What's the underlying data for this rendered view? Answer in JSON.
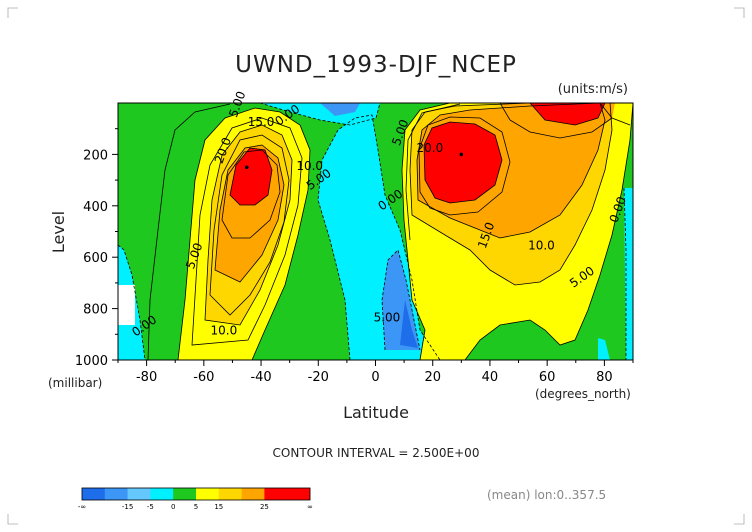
{
  "chart_data": {
    "type": "heatmap",
    "title": "UWND_1993-DJF_NCEP",
    "units": "(units:m/s)",
    "xlabel": "Latitude",
    "ylabel": "Level",
    "xunit": "(degrees_north)",
    "yunit": "(millibar)",
    "xlim": [
      -90,
      90
    ],
    "ylim": [
      1000,
      0
    ],
    "xticks": [
      -80,
      -60,
      -40,
      -20,
      0,
      20,
      40,
      60,
      80
    ],
    "yticks": [
      200,
      400,
      600,
      800,
      1000
    ],
    "contour_interval_text": "CONTOUR INTERVAL = 2.500E+00",
    "footer_text": "(mean) lon:0..357.5",
    "colorbar": {
      "labels": [
        "-∞",
        "-15",
        "-5",
        "0",
        "5",
        "15",
        "25",
        "∞"
      ],
      "colors": [
        "#1e6eeb",
        "#3c96f5",
        "#64c8ff",
        "#00f0ff",
        "#1ec81e",
        "#ffff00",
        "#ffd700",
        "#ffa500",
        "#ff0000",
        "#ff0000"
      ]
    },
    "jets": [
      {
        "lat": -45,
        "level": 250,
        "max_label": "20.0"
      },
      {
        "lat": 30,
        "level": 200,
        "max_label": "20.0"
      }
    ],
    "contour_labels": [
      {
        "text": "5.00",
        "lat": -47,
        "level": 10
      },
      {
        "text": "15.0",
        "lat": -40,
        "level": 90
      },
      {
        "text": "0.00",
        "lat": -30,
        "level": 60
      },
      {
        "text": "20.0",
        "lat": -52,
        "level": 190
      },
      {
        "text": "10.0",
        "lat": -23,
        "level": 260
      },
      {
        "text": "5.00",
        "lat": -19,
        "level": 310
      },
      {
        "text": "5.00",
        "lat": -62,
        "level": 600
      },
      {
        "text": "10.0",
        "lat": -53,
        "level": 900
      },
      {
        "text": "0.00",
        "lat": -80,
        "level": 880
      },
      {
        "text": "5.00",
        "lat": 10,
        "level": 120
      },
      {
        "text": "20.0",
        "lat": 19,
        "level": 190
      },
      {
        "text": "0.00",
        "lat": 6,
        "level": 390
      },
      {
        "text": "15.0",
        "lat": 40,
        "level": 520
      },
      {
        "text": "10.0",
        "lat": 58,
        "level": 570
      },
      {
        "text": "5.00",
        "lat": 73,
        "level": 690
      },
      {
        "text": "0.00",
        "lat": 86,
        "level": 420
      },
      {
        "text": "5.00",
        "lat": 4,
        "level": 850
      }
    ],
    "legend": "bottom (colorbar)",
    "grid": false
  }
}
